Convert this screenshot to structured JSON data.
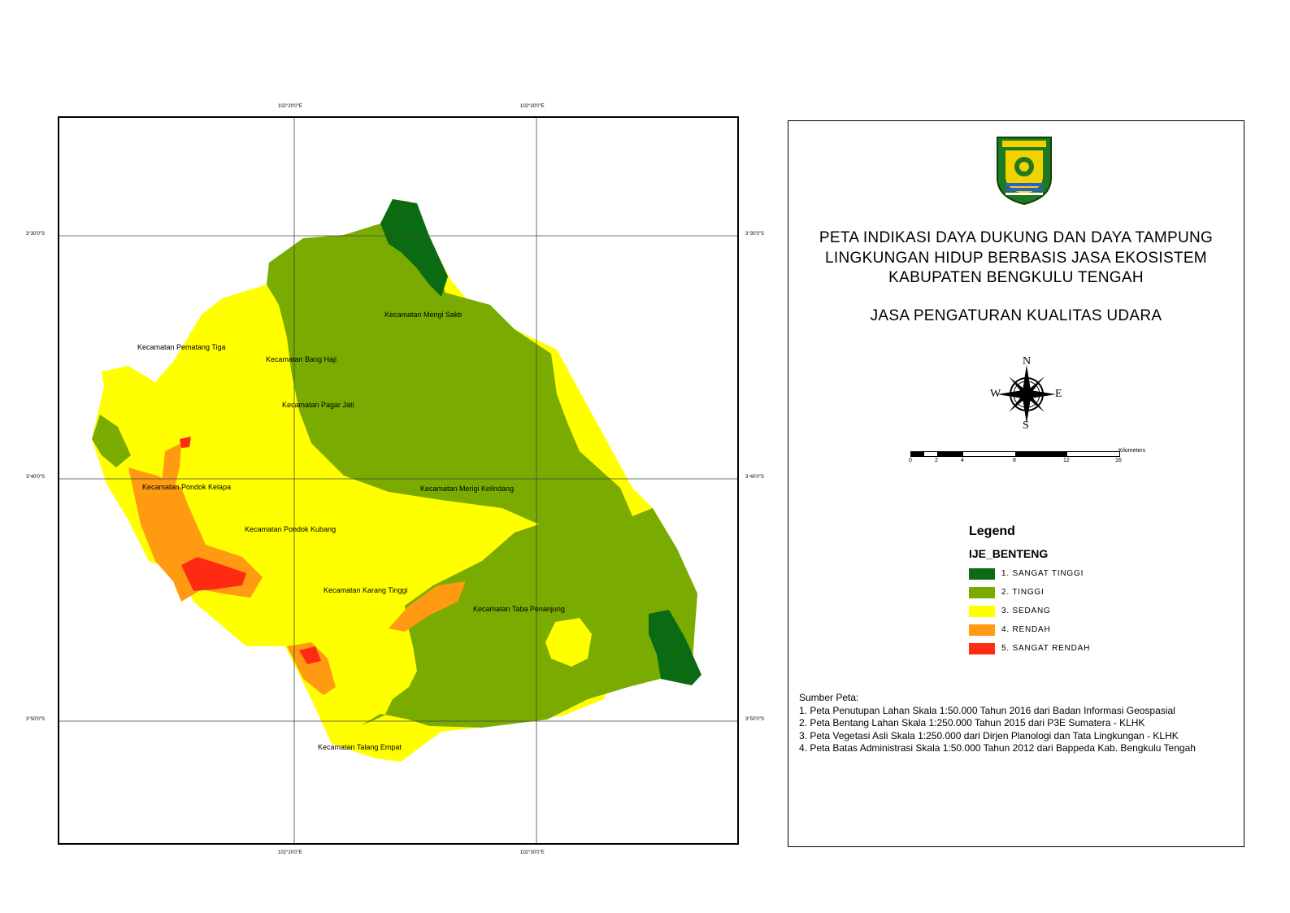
{
  "map": {
    "graticule": {
      "top_labels": [
        "102°20'0\"E",
        "102°30'0\"E"
      ],
      "bottom_labels": [
        "102°20'0\"E",
        "102°30'0\"E"
      ],
      "left_labels": [
        "3°30'0\"S",
        "3°40'0\"S",
        "3°50'0\"S"
      ],
      "right_labels": [
        "3°30'0\"S",
        "3°40'0\"S",
        "3°50'0\"S"
      ]
    },
    "kecamatan": [
      "Kecamatan Merigi Sakti",
      "Kecamatan Pematang Tiga",
      "Kecamatan Bang Haji",
      "Kecamatan Pagar Jati",
      "Kecamatan Pondok Kelapa",
      "Kecamatan Merigi Kelindang",
      "Kecamatan Pondok Kubang",
      "Kecamatan Karang Tinggi",
      "Kecamatan Taba Penanjung",
      "Kecamatan Talang Empat"
    ],
    "colors": {
      "sangat_tinggi": "#0b6b12",
      "tinggi": "#7aab00",
      "sedang": "#ffff00",
      "rendah": "#ff9a12",
      "sangat_rendah": "#ff2a12"
    }
  },
  "panel": {
    "title_lines": [
      "PETA INDIKASI DAYA DUKUNG DAN DAYA TAMPUNG",
      "LINGKUNGAN HIDUP BERBASIS JASA EKOSISTEM",
      "KABUPATEN BENGKULU TENGAH"
    ],
    "subtitle": "JASA PENGATURAN KUALITAS UDARA",
    "compass": {
      "n": "N",
      "s": "S",
      "e": "E",
      "w": "W"
    },
    "scale": {
      "unit": "Kilometers",
      "ticks": [
        "0",
        "2",
        "4",
        "8",
        "12",
        "16"
      ]
    },
    "legend": {
      "heading": "Legend",
      "layer": "IJE_BENTENG",
      "items": [
        {
          "label": "1. SANGAT TINGGI",
          "color": "#0b6b12"
        },
        {
          "label": "2. TINGGI",
          "color": "#7aab00"
        },
        {
          "label": "3. SEDANG",
          "color": "#ffff00"
        },
        {
          "label": "4. RENDAH",
          "color": "#ff9a12"
        },
        {
          "label": "5. SANGAT RENDAH",
          "color": "#ff2a12"
        }
      ]
    },
    "sources": {
      "heading": "Sumber Peta:",
      "lines": [
        "1. Peta Penutupan Lahan Skala 1:50.000 Tahun 2016 dari Badan Informasi Geospasial",
        "2. Peta Bentang Lahan Skala 1:250.000 Tahun 2015 dari  P3E Sumatera - KLHK",
        "3. Peta Vegetasi Asli Skala 1:250.000 dari Dirjen Planologi dan Tata Lingkungan - KLHK",
        "4. Peta Batas Administrasi Skala 1:50.000 Tahun 2012 dari Bappeda Kab. Bengkulu Tengah"
      ]
    }
  }
}
